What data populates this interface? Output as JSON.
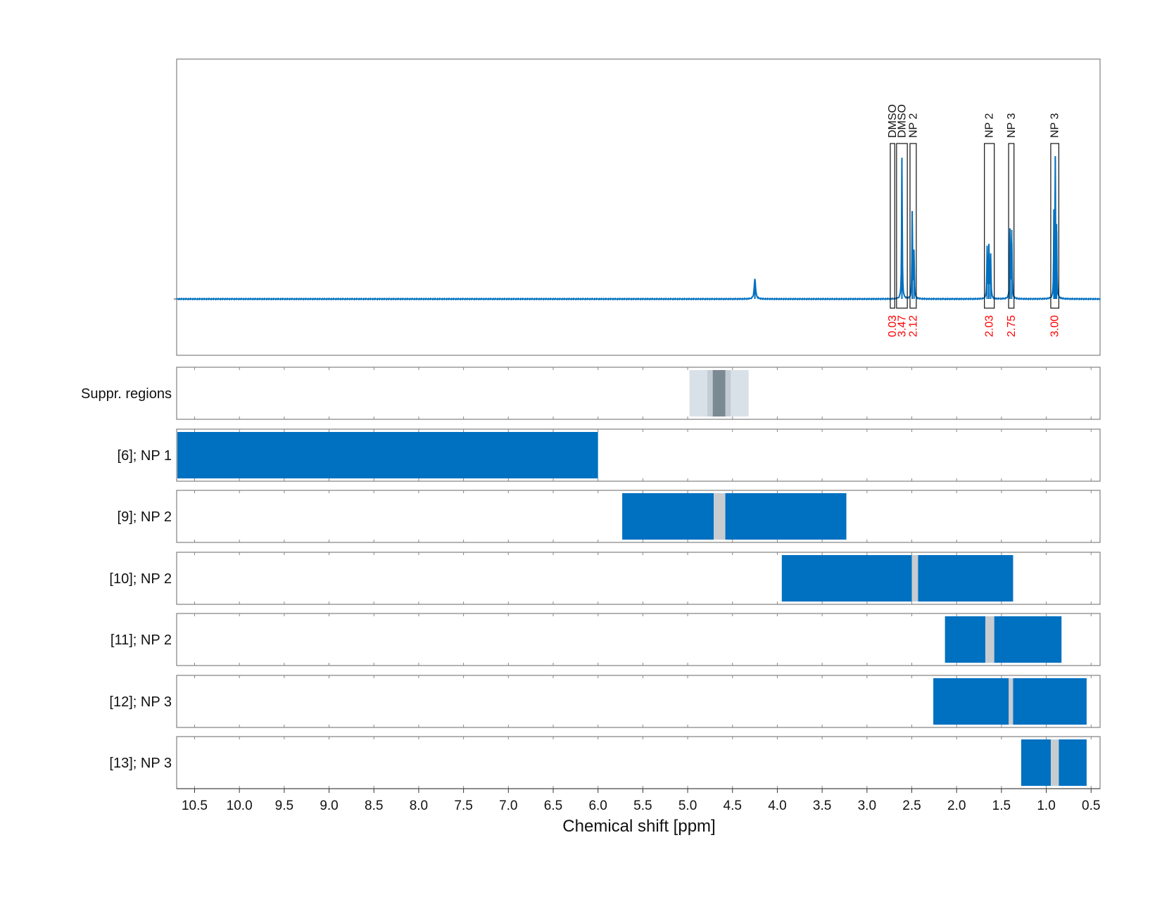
{
  "chart_data": {
    "type": "nmr-spectrum-with-region-tracks",
    "xlabel": "Chemical shift [ppm]",
    "x_reversed": true,
    "xlim": [
      10.7,
      0.4
    ],
    "x_ticks": [
      10.5,
      10.0,
      9.5,
      9.0,
      8.5,
      8.0,
      7.5,
      7.0,
      6.5,
      6.0,
      5.5,
      5.0,
      4.5,
      4.0,
      3.5,
      3.0,
      2.5,
      2.0,
      1.5,
      1.0,
      0.5
    ],
    "x_tick_labels": [
      "10.5",
      "10.0",
      "9.5",
      "9.0",
      "8.5",
      "8.0",
      "7.5",
      "7.0",
      "6.5",
      "6.0",
      "5.5",
      "5.0",
      "4.5",
      "4.0",
      "3.5",
      "3.0",
      "2.5",
      "2.0",
      "1.5",
      "1.0",
      "0.5"
    ],
    "spectrum": {
      "color": "#0070c0",
      "baseline": 0,
      "ylim": [
        -0.4,
        1.6
      ],
      "peaks": [
        {
          "ppm": 4.25,
          "height": 0.14,
          "width": 0.018
        },
        {
          "ppm": 2.61,
          "height": 0.98,
          "width": 0.008
        },
        {
          "ppm": 2.495,
          "height": 0.61,
          "width": 0.008
        },
        {
          "ppm": 2.475,
          "height": 0.33,
          "width": 0.008
        },
        {
          "ppm": 1.66,
          "height": 0.35,
          "width": 0.008
        },
        {
          "ppm": 1.64,
          "height": 0.36,
          "width": 0.008
        },
        {
          "ppm": 1.62,
          "height": 0.3,
          "width": 0.008
        },
        {
          "ppm": 1.405,
          "height": 0.49,
          "width": 0.008
        },
        {
          "ppm": 1.385,
          "height": 0.48,
          "width": 0.008
        },
        {
          "ppm": 0.915,
          "height": 0.56,
          "width": 0.007
        },
        {
          "ppm": 0.9,
          "height": 0.99,
          "width": 0.007
        },
        {
          "ppm": 0.885,
          "height": 0.52,
          "width": 0.007
        }
      ]
    },
    "integration_regions": [
      {
        "label": "DMSO",
        "integral": "0.03",
        "from": 2.69,
        "to": 2.74
      },
      {
        "label": "DMSO",
        "integral": "3.47",
        "from": 2.55,
        "to": 2.67
      },
      {
        "label": "NP 2",
        "integral": "2.12",
        "from": 2.45,
        "to": 2.52
      },
      {
        "label": "NP 2",
        "integral": "2.03",
        "from": 1.58,
        "to": 1.69
      },
      {
        "label": "NP 3",
        "integral": "2.75",
        "from": 1.36,
        "to": 1.42
      },
      {
        "label": "NP 3",
        "integral": "3.00",
        "from": 0.86,
        "to": 0.95
      }
    ],
    "suppression_track": {
      "label": "Suppr. regions",
      "outer": {
        "from": 4.98,
        "to": 4.32,
        "color": "#d9e1e8"
      },
      "middle": {
        "from": 4.78,
        "to": 4.52,
        "color": "#c3ccd5"
      },
      "inner": {
        "from": 4.72,
        "to": 4.58,
        "color": "#7b8993"
      }
    },
    "tracks": [
      {
        "label": "[6]; NP 1",
        "from": 10.7,
        "to": 6.0,
        "gaps": []
      },
      {
        "label": "[9]; NP 2",
        "from": 5.73,
        "to": 3.23,
        "gaps": [
          {
            "from": 4.71,
            "to": 4.58
          }
        ]
      },
      {
        "label": "[10]; NP 2",
        "from": 3.95,
        "to": 1.37,
        "gaps": [
          {
            "from": 2.5,
            "to": 2.43
          }
        ]
      },
      {
        "label": "[11]; NP 2",
        "from": 2.13,
        "to": 0.83,
        "gaps": [
          {
            "from": 1.68,
            "to": 1.58
          }
        ]
      },
      {
        "label": "[12]; NP 3",
        "from": 2.26,
        "to": 0.55,
        "gaps": [
          {
            "from": 1.42,
            "to": 1.37
          }
        ]
      },
      {
        "label": "[13]; NP 3",
        "from": 1.28,
        "to": 0.55,
        "gaps": [
          {
            "from": 0.95,
            "to": 0.86
          }
        ]
      }
    ],
    "colors": {
      "bar": "#0070c0",
      "gap": "#c8ccd0",
      "integral_text": "#ff0000",
      "grid": "#c8c8c8",
      "frame": "#808080"
    }
  }
}
